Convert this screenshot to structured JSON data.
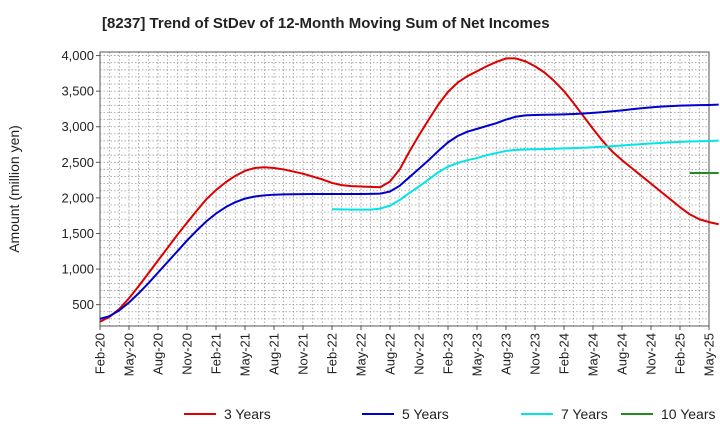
{
  "chart_data": {
    "type": "line",
    "title": "[8237]  Trend of StDev of 12-Month Moving Sum of Net Incomes",
    "xlabel": "",
    "ylabel": "Amount (million yen)",
    "ylim": [
      200,
      4050
    ],
    "yticks": [
      500,
      1000,
      1500,
      2000,
      2500,
      3000,
      3500,
      4000
    ],
    "ytick_labels": [
      "500",
      "1,000",
      "1,500",
      "2,000",
      "2,500",
      "3,000",
      "3,500",
      "4,000"
    ],
    "xlim": [
      "2020-02",
      "2025-05"
    ],
    "xtick_labels": [
      "Feb-20",
      "May-20",
      "Aug-20",
      "Nov-20",
      "Feb-21",
      "May-21",
      "Aug-21",
      "Nov-21",
      "Feb-22",
      "May-22",
      "Aug-22",
      "Nov-22",
      "Feb-23",
      "May-23",
      "Aug-23",
      "Nov-23",
      "Feb-24",
      "May-24",
      "Aug-24",
      "Nov-24",
      "Feb-25",
      "May-25"
    ],
    "grid": true,
    "legend_position": "bottom",
    "series": [
      {
        "name": "3 Years",
        "color": "#dd0000",
        "points": [
          [
            "2020-02",
            260
          ],
          [
            "2020-03",
            330
          ],
          [
            "2020-04",
            440
          ],
          [
            "2020-05",
            590
          ],
          [
            "2020-06",
            760
          ],
          [
            "2020-07",
            940
          ],
          [
            "2020-08",
            1120
          ],
          [
            "2020-09",
            1300
          ],
          [
            "2020-10",
            1480
          ],
          [
            "2020-11",
            1650
          ],
          [
            "2020-12",
            1820
          ],
          [
            "2021-01",
            1980
          ],
          [
            "2021-02",
            2110
          ],
          [
            "2021-03",
            2220
          ],
          [
            "2021-04",
            2310
          ],
          [
            "2021-05",
            2380
          ],
          [
            "2021-06",
            2420
          ],
          [
            "2021-07",
            2430
          ],
          [
            "2021-08",
            2420
          ],
          [
            "2021-09",
            2400
          ],
          [
            "2021-10",
            2370
          ],
          [
            "2021-11",
            2340
          ],
          [
            "2021-12",
            2300
          ],
          [
            "2022-01",
            2260
          ],
          [
            "2022-02",
            2210
          ],
          [
            "2022-03",
            2180
          ],
          [
            "2022-04",
            2165
          ],
          [
            "2022-05",
            2160
          ],
          [
            "2022-06",
            2155
          ],
          [
            "2022-07",
            2150
          ],
          [
            "2022-08",
            2230
          ],
          [
            "2022-09",
            2400
          ],
          [
            "2022-10",
            2650
          ],
          [
            "2022-11",
            2880
          ],
          [
            "2022-12",
            3100
          ],
          [
            "2023-01",
            3310
          ],
          [
            "2023-02",
            3490
          ],
          [
            "2023-03",
            3620
          ],
          [
            "2023-04",
            3710
          ],
          [
            "2023-05",
            3780
          ],
          [
            "2023-06",
            3850
          ],
          [
            "2023-07",
            3910
          ],
          [
            "2023-08",
            3960
          ],
          [
            "2023-09",
            3960
          ],
          [
            "2023-10",
            3920
          ],
          [
            "2023-11",
            3850
          ],
          [
            "2023-12",
            3760
          ],
          [
            "2024-01",
            3640
          ],
          [
            "2024-02",
            3500
          ],
          [
            "2024-03",
            3330
          ],
          [
            "2024-04",
            3150
          ],
          [
            "2024-05",
            2970
          ],
          [
            "2024-06",
            2800
          ],
          [
            "2024-07",
            2650
          ],
          [
            "2024-08",
            2530
          ],
          [
            "2024-09",
            2420
          ],
          [
            "2024-10",
            2310
          ],
          [
            "2024-11",
            2200
          ],
          [
            "2024-12",
            2090
          ],
          [
            "2025-01",
            1980
          ],
          [
            "2025-02",
            1870
          ],
          [
            "2025-03",
            1770
          ],
          [
            "2025-04",
            1700
          ],
          [
            "2025-05",
            1660
          ],
          [
            "2025-06",
            1630
          ]
        ]
      },
      {
        "name": "5 Years",
        "color": "#0000cc",
        "points": [
          [
            "2020-02",
            300
          ],
          [
            "2020-03",
            340
          ],
          [
            "2020-04",
            420
          ],
          [
            "2020-05",
            530
          ],
          [
            "2020-06",
            660
          ],
          [
            "2020-07",
            800
          ],
          [
            "2020-08",
            950
          ],
          [
            "2020-09",
            1100
          ],
          [
            "2020-10",
            1250
          ],
          [
            "2020-11",
            1400
          ],
          [
            "2020-12",
            1540
          ],
          [
            "2021-01",
            1670
          ],
          [
            "2021-02",
            1780
          ],
          [
            "2021-03",
            1870
          ],
          [
            "2021-04",
            1940
          ],
          [
            "2021-05",
            1990
          ],
          [
            "2021-06",
            2020
          ],
          [
            "2021-07",
            2035
          ],
          [
            "2021-08",
            2045
          ],
          [
            "2021-09",
            2050
          ],
          [
            "2021-10",
            2052
          ],
          [
            "2021-11",
            2053
          ],
          [
            "2021-12",
            2054
          ],
          [
            "2022-01",
            2054
          ],
          [
            "2022-02",
            2054
          ],
          [
            "2022-03",
            2054
          ],
          [
            "2022-04",
            2054
          ],
          [
            "2022-05",
            2055
          ],
          [
            "2022-06",
            2056
          ],
          [
            "2022-07",
            2060
          ],
          [
            "2022-08",
            2090
          ],
          [
            "2022-09",
            2170
          ],
          [
            "2022-10",
            2290
          ],
          [
            "2022-11",
            2410
          ],
          [
            "2022-12",
            2530
          ],
          [
            "2023-01",
            2660
          ],
          [
            "2023-02",
            2780
          ],
          [
            "2023-03",
            2870
          ],
          [
            "2023-04",
            2930
          ],
          [
            "2023-05",
            2970
          ],
          [
            "2023-06",
            3010
          ],
          [
            "2023-07",
            3050
          ],
          [
            "2023-08",
            3100
          ],
          [
            "2023-09",
            3140
          ],
          [
            "2023-10",
            3160
          ],
          [
            "2023-11",
            3165
          ],
          [
            "2023-12",
            3168
          ],
          [
            "2024-01",
            3170
          ],
          [
            "2024-02",
            3173
          ],
          [
            "2024-03",
            3178
          ],
          [
            "2024-04",
            3185
          ],
          [
            "2024-05",
            3195
          ],
          [
            "2024-06",
            3205
          ],
          [
            "2024-07",
            3218
          ],
          [
            "2024-08",
            3230
          ],
          [
            "2024-09",
            3245
          ],
          [
            "2024-10",
            3260
          ],
          [
            "2024-11",
            3272
          ],
          [
            "2024-12",
            3282
          ],
          [
            "2025-01",
            3290
          ],
          [
            "2025-02",
            3296
          ],
          [
            "2025-03",
            3300
          ],
          [
            "2025-04",
            3303
          ],
          [
            "2025-05",
            3306
          ],
          [
            "2025-06",
            3310
          ]
        ]
      },
      {
        "name": "7 Years",
        "color": "#00e5e5",
        "points": [
          [
            "2022-02",
            1840
          ],
          [
            "2022-03",
            1838
          ],
          [
            "2022-04",
            1836
          ],
          [
            "2022-05",
            1835
          ],
          [
            "2022-06",
            1835
          ],
          [
            "2022-07",
            1850
          ],
          [
            "2022-08",
            1890
          ],
          [
            "2022-09",
            1970
          ],
          [
            "2022-10",
            2070
          ],
          [
            "2022-11",
            2160
          ],
          [
            "2022-12",
            2260
          ],
          [
            "2023-01",
            2360
          ],
          [
            "2023-02",
            2440
          ],
          [
            "2023-03",
            2490
          ],
          [
            "2023-04",
            2530
          ],
          [
            "2023-05",
            2560
          ],
          [
            "2023-06",
            2600
          ],
          [
            "2023-07",
            2630
          ],
          [
            "2023-08",
            2660
          ],
          [
            "2023-09",
            2675
          ],
          [
            "2023-10",
            2680
          ],
          [
            "2023-11",
            2683
          ],
          [
            "2023-12",
            2686
          ],
          [
            "2024-01",
            2690
          ],
          [
            "2024-02",
            2695
          ],
          [
            "2024-03",
            2700
          ],
          [
            "2024-04",
            2705
          ],
          [
            "2024-05",
            2712
          ],
          [
            "2024-06",
            2720
          ],
          [
            "2024-07",
            2728
          ],
          [
            "2024-08",
            2737
          ],
          [
            "2024-09",
            2746
          ],
          [
            "2024-10",
            2755
          ],
          [
            "2024-11",
            2764
          ],
          [
            "2024-12",
            2772
          ],
          [
            "2025-01",
            2780
          ],
          [
            "2025-02",
            2787
          ],
          [
            "2025-03",
            2792
          ],
          [
            "2025-04",
            2796
          ],
          [
            "2025-05",
            2800
          ],
          [
            "2025-06",
            2805
          ]
        ]
      },
      {
        "name": "10 Years",
        "color": "#228b22",
        "points": [
          [
            "2025-03",
            2350
          ],
          [
            "2025-06",
            2350
          ]
        ]
      }
    ]
  }
}
